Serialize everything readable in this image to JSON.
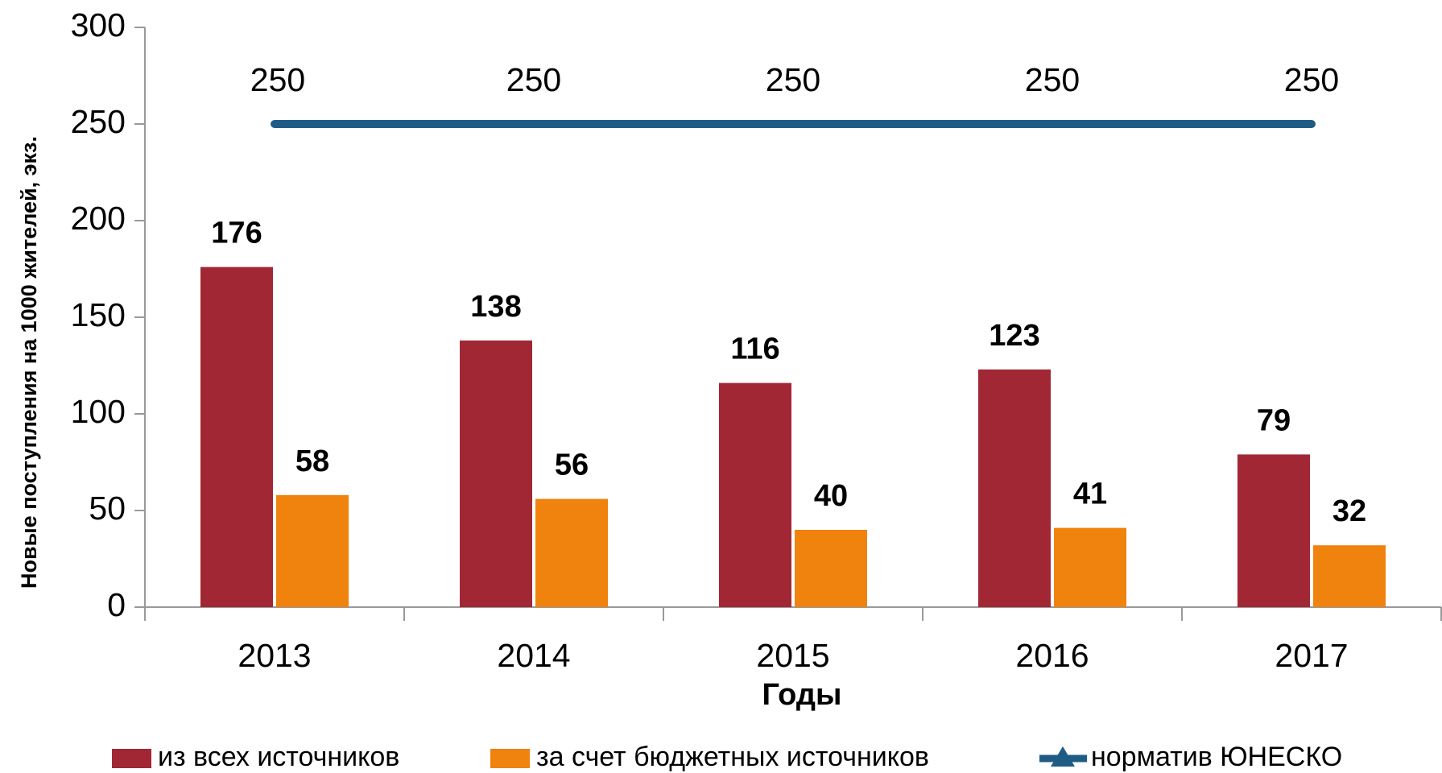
{
  "chart_data": {
    "type": "bar",
    "categories": [
      "2013",
      "2014",
      "2015",
      "2016",
      "2017"
    ],
    "series": [
      {
        "name": "из всех источников",
        "color": "#a12735",
        "values": [
          176,
          138,
          116,
          123,
          79
        ]
      },
      {
        "name": "за счет бюджетных источников",
        "color": "#f0820e",
        "values": [
          58,
          56,
          40,
          41,
          32
        ]
      },
      {
        "name": "норматив ЮНЕСКО",
        "color": "#1f5c85",
        "type": "line",
        "values": [
          250,
          250,
          250,
          250,
          250
        ]
      }
    ],
    "x_label": "Годы",
    "y_label": "Новые поступления на 1000 жителей, экз.",
    "ylim": [
      0,
      300
    ],
    "yticks": [
      0,
      50,
      100,
      150,
      200,
      250,
      300
    ],
    "grid": false,
    "legend": "bottom"
  }
}
